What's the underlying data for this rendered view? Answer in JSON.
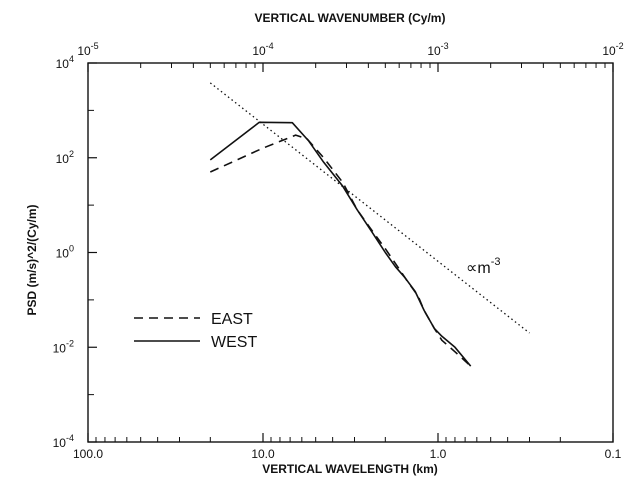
{
  "chart_data": {
    "type": "line",
    "title": "",
    "xlabel": "VERTICAL WAVELENGTH (km)",
    "x2label": "VERTICAL WAVENUMBER (Cy/m)",
    "ylabel": "PSD (m/s)^2/(Cy/m)",
    "xscale": "log",
    "yscale": "log",
    "xlim": [
      100.0,
      0.1
    ],
    "ylim": [
      0.0001,
      10000
    ],
    "x_ticks": [
      {
        "value": 100.0,
        "label": "100.0"
      },
      {
        "value": 10.0,
        "label": "10.0"
      },
      {
        "value": 1.0,
        "label": "1.0"
      },
      {
        "value": 0.1,
        "label": "0.1"
      }
    ],
    "x2_ticks": [
      {
        "value": 100.0,
        "base": "10",
        "exp": "-5"
      },
      {
        "value": 10.0,
        "base": "10",
        "exp": "-4"
      },
      {
        "value": 1.0,
        "base": "10",
        "exp": "-3"
      },
      {
        "value": 0.1,
        "base": "10",
        "exp": "-2"
      }
    ],
    "y_ticks": [
      {
        "value": 10000,
        "base": "10",
        "exp": "4"
      },
      {
        "value": 100,
        "base": "10",
        "exp": "2"
      },
      {
        "value": 1,
        "base": "10",
        "exp": "0"
      },
      {
        "value": 0.01,
        "base": "10",
        "exp": "-2"
      },
      {
        "value": 0.0001,
        "base": "10",
        "exp": "-4"
      }
    ],
    "legend_position": "left",
    "series": [
      {
        "name": "EAST",
        "style": "dashed",
        "x": [
          20.0,
          10.0,
          6.5,
          5.6,
          4.5,
          3.5,
          2.9,
          2.4,
          2.0,
          1.7,
          1.5,
          1.3,
          1.2,
          1.05,
          0.95,
          0.8,
          0.65
        ],
        "y": [
          50,
          160,
          300,
          250,
          100,
          30,
          8,
          3.0,
          1.2,
          0.5,
          0.25,
          0.12,
          0.06,
          0.025,
          0.014,
          0.008,
          0.004
        ]
      },
      {
        "name": "WEST",
        "style": "solid",
        "x": [
          20.0,
          10.5,
          6.8,
          5.5,
          4.5,
          3.5,
          2.9,
          2.4,
          2.0,
          1.75,
          1.55,
          1.35,
          1.2,
          1.05,
          0.95,
          0.8,
          0.65
        ],
        "y": [
          90,
          560,
          550,
          230,
          80,
          25,
          8,
          2.8,
          1.0,
          0.5,
          0.3,
          0.15,
          0.06,
          0.025,
          0.017,
          0.01,
          0.004
        ]
      },
      {
        "name": "",
        "style": "dotted",
        "x": [
          20.0,
          0.3
        ],
        "y": [
          3800,
          0.02
        ]
      }
    ],
    "annotations": [
      {
        "text": "∝m",
        "superscript": "-3",
        "x": 0.55,
        "y": 0.5
      }
    ]
  }
}
